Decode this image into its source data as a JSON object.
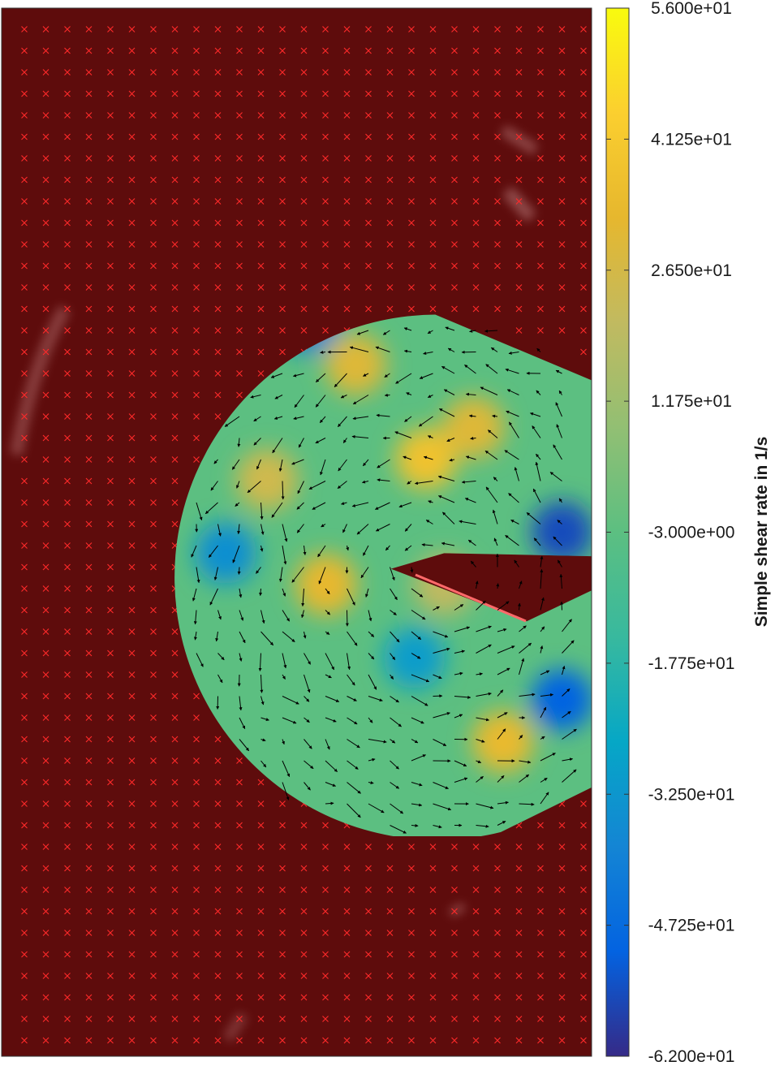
{
  "chart_data": {
    "type": "heatmap",
    "description_kind": "PIV vector field overlay with simple shear rate colormap",
    "colorbar": {
      "label": "Simple shear rate in 1/s",
      "range": [
        -62,
        56
      ],
      "colormap": "parula",
      "ticks": [
        56,
        41.25,
        26.5,
        11.75,
        -3,
        -17.75,
        -32.5,
        -47.25,
        -62
      ],
      "tick_labels": [
        "5.600e+01",
        "4.125e+01",
        "2.650e+01",
        "1.175e+01",
        "-3.000e+00",
        "-1.775e+01",
        "-3.250e+01",
        "-4.725e+01",
        "-6.200e+01"
      ]
    },
    "masked_region_color": "#5e0c0c",
    "masked_marker_color": "#ff2a2a",
    "vector_color": "#000000",
    "hotspots": [
      {
        "x": 0.72,
        "y": 0.43,
        "value": 38
      },
      {
        "x": 0.6,
        "y": 0.34,
        "value": 30
      },
      {
        "x": 0.55,
        "y": 0.55,
        "value": 33
      },
      {
        "x": 0.8,
        "y": 0.4,
        "value": 30
      },
      {
        "x": 0.52,
        "y": 0.3,
        "value": -40
      },
      {
        "x": 0.95,
        "y": 0.5,
        "value": -55
      },
      {
        "x": 0.95,
        "y": 0.66,
        "value": -50
      },
      {
        "x": 0.38,
        "y": 0.52,
        "value": -35
      },
      {
        "x": 0.7,
        "y": 0.62,
        "value": -30
      },
      {
        "x": 0.75,
        "y": 0.55,
        "value": 20
      },
      {
        "x": 0.85,
        "y": 0.7,
        "value": 34
      },
      {
        "x": 0.45,
        "y": 0.45,
        "value": 25
      }
    ]
  }
}
